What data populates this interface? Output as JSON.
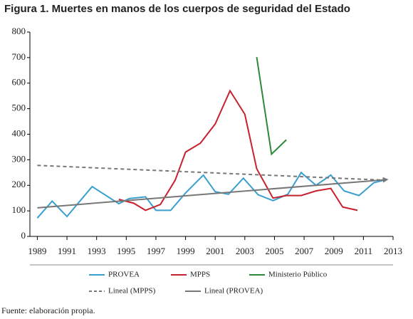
{
  "chart_data": {
    "type": "line",
    "title": "Figura 1. Muertes en manos de los cuerpos de seguridad del Estado",
    "source": "Fuente: elaboración propia.",
    "xlim": [
      1988.5,
      2013
    ],
    "xticks": [
      1989,
      1991,
      1993,
      1995,
      1997,
      1999,
      2001,
      2003,
      2005,
      2007,
      2009,
      2011,
      2013
    ],
    "ylim": [
      0,
      800
    ],
    "yticks": [
      0,
      100,
      200,
      300,
      400,
      500,
      600,
      700,
      800
    ],
    "series": [
      {
        "name": "PROVEA",
        "color": "#3a9fcf",
        "style": "solid",
        "x": [
          1989,
          1990,
          1991,
          1992.7,
          1994.5,
          1995.2,
          1996.3,
          1997,
          1998,
          1999,
          2000.2,
          2001,
          2001.9,
          2002.9,
          2003.9,
          2004.9,
          2005.9,
          2006.8,
          2007.8,
          2008.8,
          2009.7,
          2010.7,
          2011.7,
          2012.4
        ],
        "values": [
          72,
          138,
          78,
          195,
          128,
          148,
          155,
          102,
          102,
          170,
          240,
          175,
          165,
          228,
          163,
          140,
          165,
          250,
          200,
          240,
          178,
          160,
          210,
          220
        ]
      },
      {
        "name": "MPPS",
        "color": "#c8202e",
        "style": "solid",
        "x": [
          1994.5,
          1995.5,
          1996.3,
          1997.3,
          1998.3,
          1999,
          2000,
          2001,
          2002,
          2003,
          2003.8,
          2004.9,
          2005.8,
          2006.8,
          2007.8,
          2008.8,
          2009.6,
          2010.6
        ],
        "values": [
          145,
          130,
          102,
          125,
          220,
          330,
          365,
          440,
          570,
          478,
          265,
          150,
          160,
          160,
          178,
          188,
          115,
          102
        ]
      },
      {
        "name": "Ministerio Público",
        "color": "#2a8a3a",
        "style": "solid",
        "x": [
          2003.8,
          2004.8,
          2005.8
        ],
        "values": [
          702,
          322,
          378
        ]
      },
      {
        "name": "Lineal (MPPS)",
        "color": "#777777",
        "style": "dashed",
        "x": [
          1989,
          2012.5
        ],
        "values": [
          278,
          220
        ]
      },
      {
        "name": "Lineal (PROVEA)",
        "color": "#777777",
        "style": "arrow",
        "x": [
          1989,
          2012.5
        ],
        "values": [
          112,
          222
        ]
      }
    ]
  }
}
